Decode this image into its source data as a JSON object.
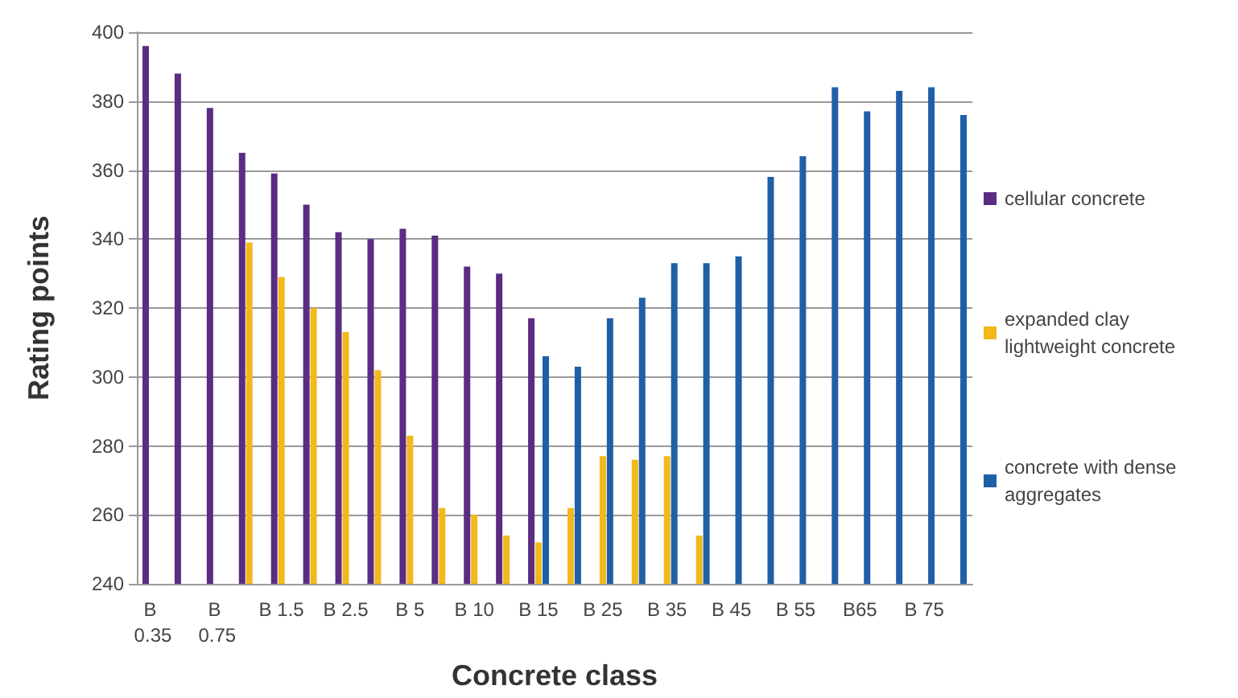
{
  "chart_data": {
    "type": "bar",
    "xlabel": "Concrete class",
    "ylabel": "Rating points",
    "categories": [
      "B 0.35",
      null,
      "B 0.75",
      null,
      "B 1.5",
      null,
      "B 2.5",
      null,
      "B 5",
      null,
      "B 10",
      null,
      "B 15",
      null,
      "B 25",
      null,
      "B 35",
      null,
      "B 45",
      null,
      "B 55",
      null,
      "B65",
      null,
      "B 75",
      null
    ],
    "series": [
      {
        "name": "cellular concrete",
        "color": "#5b2c83",
        "values": [
          396,
          388,
          378,
          365,
          359,
          350,
          342,
          340,
          343,
          341,
          332,
          330,
          317,
          null,
          null,
          null,
          null,
          null,
          null,
          null,
          null,
          null,
          null,
          null,
          null,
          null
        ]
      },
      {
        "name": "expanded clay lightweight concrete",
        "color": "#f2b81c",
        "values": [
          null,
          null,
          null,
          339,
          329,
          320,
          313,
          302,
          283,
          262,
          260,
          254,
          252,
          262,
          277,
          276,
          277,
          254,
          null,
          null,
          null,
          null,
          null,
          null,
          null,
          null
        ]
      },
      {
        "name": "concrete with dense aggregates",
        "color": "#1f5fa6",
        "values": [
          null,
          null,
          null,
          null,
          null,
          null,
          null,
          null,
          null,
          null,
          null,
          null,
          306,
          303,
          317,
          323,
          333,
          333,
          335,
          358,
          364,
          384,
          377,
          383,
          384,
          376
        ]
      }
    ],
    "ylim": [
      240,
      400
    ],
    "yticks": [
      240,
      260,
      280,
      300,
      320,
      340,
      360,
      380,
      400
    ],
    "grid": "y",
    "legend": "right"
  }
}
